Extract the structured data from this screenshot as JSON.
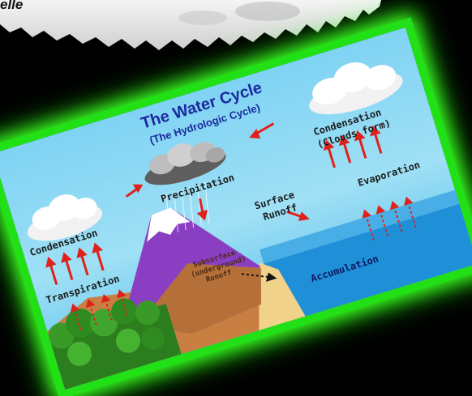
{
  "top_text": "elle",
  "diagram": {
    "title": "The Water Cycle",
    "subtitle": "(The Hydrologic Cycle)",
    "labels": {
      "condensation_right_1": "Condensation",
      "condensation_right_2": "(Clouds form)",
      "precipitation": "Precipitation",
      "condensation_left": "Condensation",
      "evaporation": "Evaporation",
      "surface_runoff_1": "Surface",
      "surface_runoff_2": "Runoff",
      "transpiration": "Transpiration",
      "subsurface_1": "Subsurface",
      "subsurface_2": "(underground)",
      "subsurface_3": "Runoff",
      "accumulation": "Accumulation"
    },
    "colors": {
      "frame_glow": "#22e016",
      "sky": "#8fd8f4",
      "ocean": "#1f8fd8",
      "mountain": "#8a3fc2",
      "soil": "#b5703a",
      "arrow": "#e0211b",
      "title": "#1a2a9e"
    }
  }
}
